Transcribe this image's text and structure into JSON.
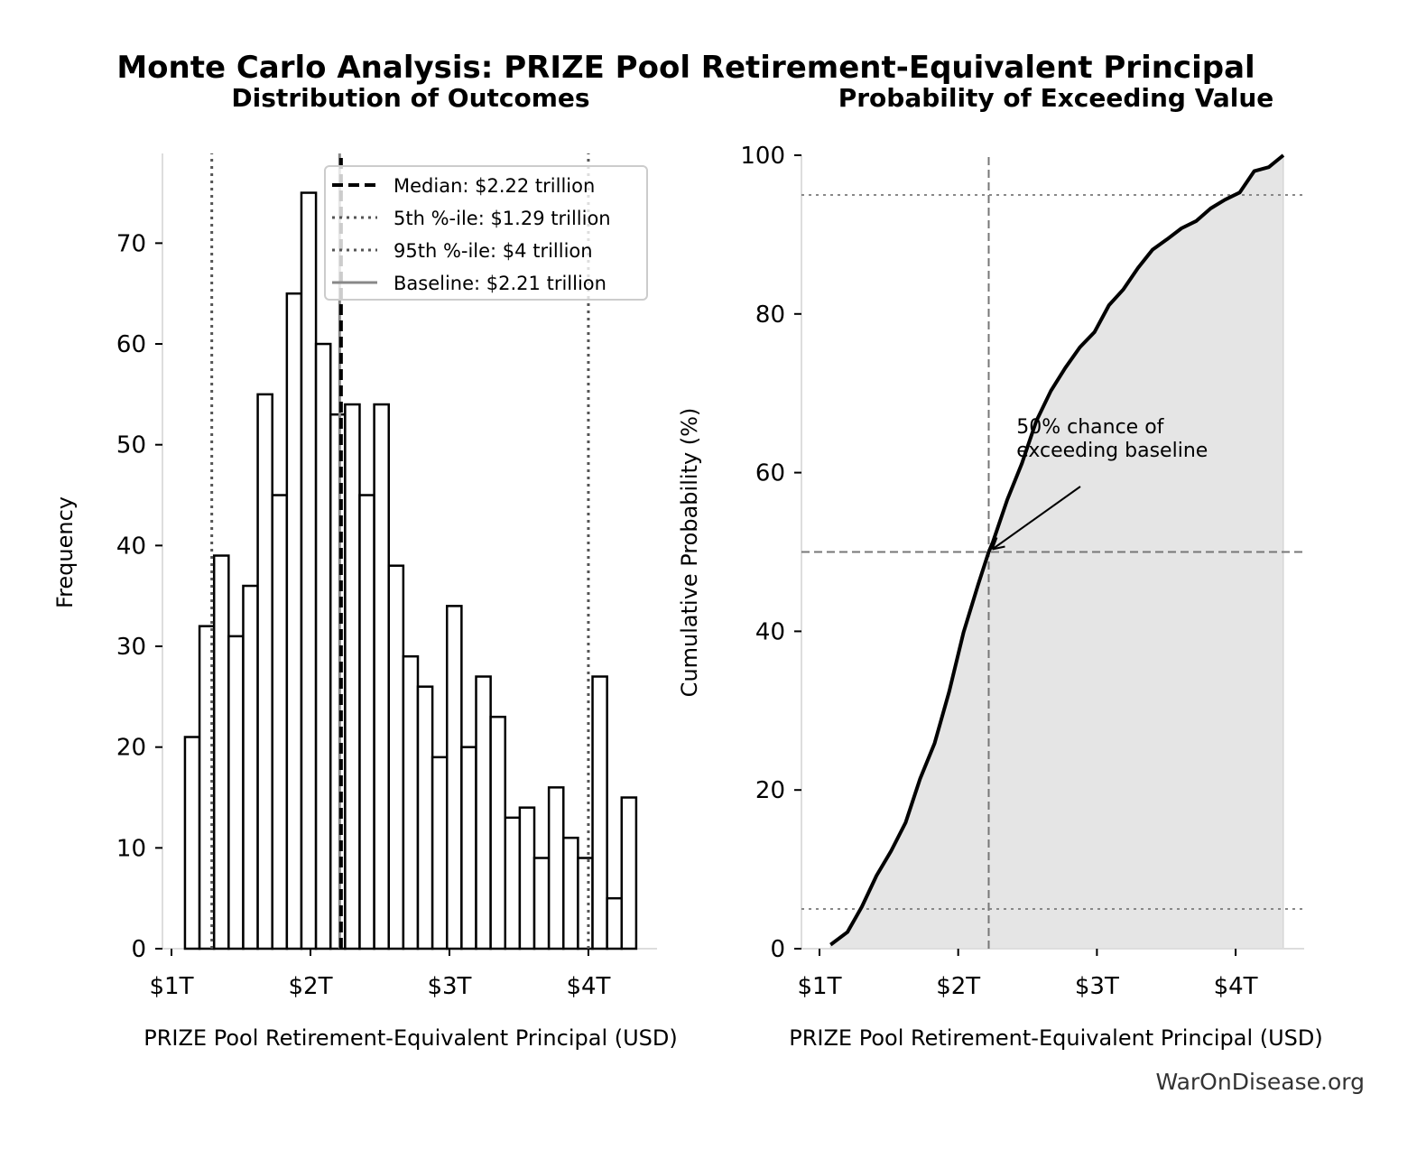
{
  "title": "Monte Carlo Analysis: PRIZE Pool Retirement-Equivalent Principal",
  "watermark": "WarOnDisease.org",
  "chart_data": [
    {
      "type": "bar",
      "subtitle": "Distribution of Outcomes",
      "xlabel": "PRIZE Pool Retirement-Equivalent Principal (USD)",
      "ylabel": "Frequency",
      "xlim": [
        0.935,
        4.494
      ],
      "ylim": [
        0,
        78.9
      ],
      "x_unit": "trillion USD",
      "xticks": [
        1,
        2,
        3,
        4
      ],
      "xtick_labels": [
        "$1T",
        "$2T",
        "$3T",
        "$4T"
      ],
      "yticks": [
        0,
        10,
        20,
        30,
        40,
        50,
        60,
        70
      ],
      "ytick_labels": [
        "0",
        "10",
        "20",
        "30",
        "40",
        "50",
        "60",
        "70"
      ],
      "bin_range": [
        1.097,
        4.344
      ],
      "values": [
        21,
        32,
        39,
        31,
        36,
        55,
        45,
        65,
        75,
        60,
        53,
        54,
        45,
        54,
        38,
        29,
        26,
        19,
        34,
        20,
        27,
        23,
        13,
        14,
        9,
        16,
        11,
        9,
        27,
        5,
        15
      ],
      "bar_fill": "#ffffff",
      "bar_edge": "#000000",
      "grid": false,
      "legend_position": "top-right",
      "reference_lines": [
        {
          "label": "Median: $2.22 trillion",
          "x": 2.22,
          "style": "dashed",
          "color": "#000000"
        },
        {
          "label": "5th %-ile: $1.29 trillion",
          "x": 1.29,
          "style": "dotted",
          "color": "#555555"
        },
        {
          "label": "95th %-ile: $4 trillion",
          "x": 4.0,
          "style": "dotted",
          "color": "#555555"
        },
        {
          "label": "Baseline: $2.21 trillion",
          "x": 2.21,
          "style": "solid",
          "color": "#888888"
        }
      ]
    },
    {
      "type": "area",
      "subtitle": "Probability of Exceeding Value",
      "xlabel": "PRIZE Pool Retirement-Equivalent Principal (USD)",
      "ylabel": "Cumulative Probability (%)",
      "xlim": [
        0.87,
        4.494
      ],
      "ylim": [
        0,
        100
      ],
      "x_unit": "trillion USD",
      "xticks": [
        1,
        2,
        3,
        4
      ],
      "xtick_labels": [
        "$1T",
        "$2T",
        "$3T",
        "$4T"
      ],
      "yticks": [
        0,
        20,
        40,
        60,
        80,
        100
      ],
      "ytick_labels": [
        "0",
        "20",
        "40",
        "60",
        "80",
        "100"
      ],
      "x": [
        1.08,
        1.202,
        1.306,
        1.411,
        1.516,
        1.621,
        1.725,
        1.83,
        1.935,
        2.039,
        2.144,
        2.22,
        2.249,
        2.354,
        2.458,
        2.563,
        2.668,
        2.772,
        2.877,
        2.982,
        3.087,
        3.191,
        3.296,
        3.401,
        3.505,
        3.61,
        3.715,
        3.82,
        3.924,
        4.029,
        4.134,
        4.239,
        4.344
      ],
      "y": [
        0.5,
        2.1,
        5.3,
        9.2,
        12.3,
        15.9,
        21.4,
        25.9,
        32.4,
        39.9,
        45.9,
        50,
        51.2,
        56.6,
        61.1,
        66.5,
        70.3,
        73.2,
        75.8,
        77.7,
        81.1,
        83.1,
        85.8,
        88.1,
        89.4,
        90.8,
        91.7,
        93.3,
        94.4,
        95.3,
        98.0,
        98.5,
        100
      ],
      "fill_color": "#e5e5e5",
      "line_color": "#000000",
      "grid": false,
      "reference_lines": [
        {
          "x": 2.22,
          "style": "dashed",
          "color": "#777777"
        },
        {
          "y": 50,
          "style": "dashed",
          "color": "#777777"
        },
        {
          "y": 5,
          "style": "dotted",
          "color": "#888888"
        },
        {
          "y": 95,
          "style": "dotted",
          "color": "#888888"
        }
      ],
      "annotation": {
        "lines": [
          "50% chance of",
          "exceeding baseline"
        ],
        "point": [
          2.22,
          50
        ],
        "text_at": [
          2.42,
          62
        ]
      }
    }
  ]
}
